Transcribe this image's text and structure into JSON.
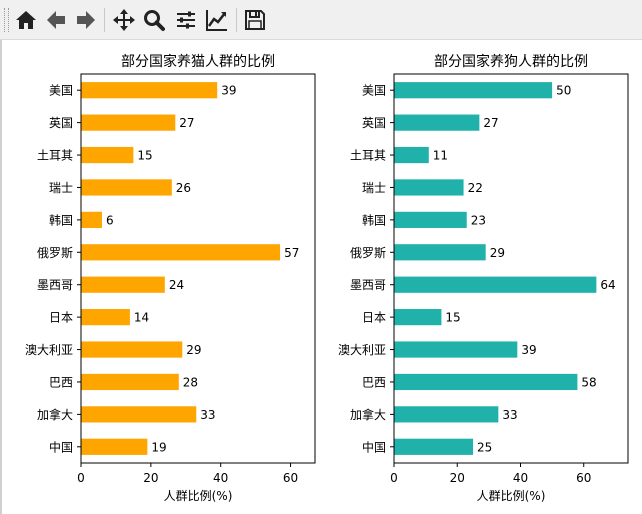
{
  "toolbar": {
    "buttons": [
      {
        "name": "home-icon"
      },
      {
        "name": "back-icon"
      },
      {
        "name": "forward-icon"
      },
      {
        "name": "pan-icon"
      },
      {
        "name": "zoom-icon"
      },
      {
        "name": "configure-subplots-icon"
      },
      {
        "name": "edit-axis-icon"
      },
      {
        "name": "save-icon"
      }
    ]
  },
  "chart_data": [
    {
      "type": "bar",
      "orientation": "horizontal",
      "title": "部分国家养猫人群的比例",
      "xlabel": "人群比例(%)",
      "ylabel": "",
      "xlim": [
        0,
        67
      ],
      "xticks": [
        0,
        20,
        40,
        60
      ],
      "bar_color": "#FFA500",
      "categories": [
        "美国",
        "英国",
        "土耳其",
        "瑞士",
        "韩国",
        "俄罗斯",
        "墨西哥",
        "日本",
        "澳大利亚",
        "巴西",
        "加拿大",
        "中国"
      ],
      "values": [
        39,
        27,
        15,
        26,
        6,
        57,
        24,
        14,
        29,
        28,
        33,
        19
      ],
      "grid": false,
      "data_labels": true
    },
    {
      "type": "bar",
      "orientation": "horizontal",
      "title": "部分国家养狗人群的比例",
      "xlabel": "人群比例(%)",
      "ylabel": "",
      "xlim": [
        0,
        74
      ],
      "xticks": [
        0,
        20,
        40,
        60
      ],
      "bar_color": "#20B2AA",
      "categories": [
        "美国",
        "英国",
        "土耳其",
        "瑞士",
        "韩国",
        "俄罗斯",
        "墨西哥",
        "日本",
        "澳大利亚",
        "巴西",
        "加拿大",
        "中国"
      ],
      "values": [
        50,
        27,
        11,
        22,
        23,
        29,
        64,
        15,
        39,
        58,
        33,
        25
      ],
      "grid": false,
      "data_labels": true
    }
  ]
}
